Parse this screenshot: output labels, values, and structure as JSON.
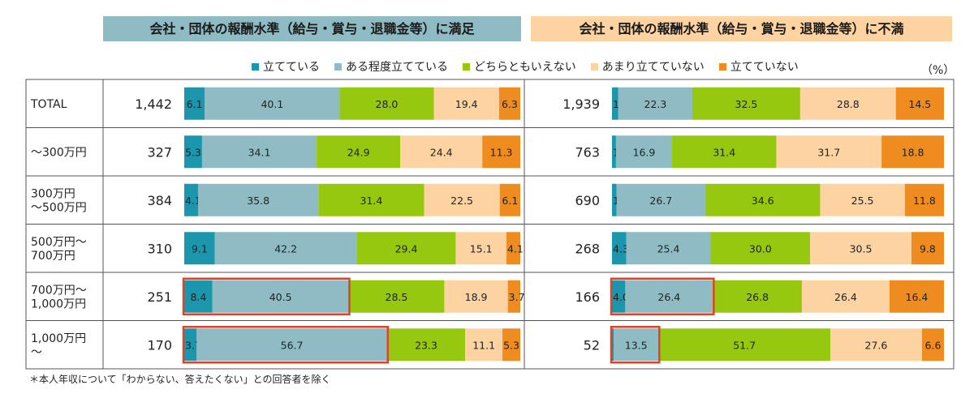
{
  "panels": {
    "left_title": "会社・団体の報酬水準（給与・賞与・退職金等）に満足",
    "right_title": "会社・団体の報酬水準（給与・賞与・退職金等）に不満"
  },
  "unit": "（%）",
  "footnote": "＊本人年収について「わからない、答えたくない」との回答者を除く",
  "legend": [
    {
      "label": "立てている",
      "color": "#1b96ad"
    },
    {
      "label": "ある程度立てている",
      "color": "#8fbcc4"
    },
    {
      "label": "どちらともいえない",
      "color": "#96c80f"
    },
    {
      "label": "あまり立てていない",
      "color": "#fdd3a2"
    },
    {
      "label": "立てていない",
      "color": "#ef8c1f"
    }
  ],
  "chart_data": [
    {
      "type": "bar",
      "orientation": "horizontal",
      "stacked": true,
      "title": "会社・団体の報酬水準（給与・賞与・退職金等）に満足",
      "categories": [
        "TOTAL",
        "～300万円",
        "300万円\n～500万円",
        "500万円～\n700万円",
        "700万円～\n1,000万円",
        "1,000万円\n～"
      ],
      "n": [
        "1,442",
        "327",
        "384",
        "310",
        "251",
        "170"
      ],
      "series": [
        {
          "name": "立てている",
          "values": [
            6.1,
            5.3,
            4.1,
            9.1,
            8.4,
            3.7
          ]
        },
        {
          "name": "ある程度立てている",
          "values": [
            40.1,
            34.1,
            35.8,
            42.2,
            40.5,
            56.7
          ]
        },
        {
          "name": "どちらともいえない",
          "values": [
            28.0,
            24.9,
            31.4,
            29.4,
            28.5,
            23.3
          ]
        },
        {
          "name": "あまり立てていない",
          "values": [
            19.4,
            24.4,
            22.5,
            15.1,
            18.9,
            11.1
          ]
        },
        {
          "name": "立てていない",
          "values": [
            6.3,
            11.3,
            6.1,
            4.1,
            3.7,
            5.3
          ]
        }
      ],
      "highlighted_rows": [
        4,
        5
      ],
      "highlighted_segments": 2,
      "highlight_color": "#d9452b"
    },
    {
      "type": "bar",
      "orientation": "horizontal",
      "stacked": true,
      "title": "会社・団体の報酬水準（給与・賞与・退職金等）に不満",
      "categories": [
        "TOTAL",
        "～300万円",
        "300万円\n～500万円",
        "500万円～\n700万円",
        "700万円～\n1,000万円",
        "1,000万円\n～"
      ],
      "n": [
        "1,939",
        "763",
        "690",
        "268",
        "166",
        "52"
      ],
      "series": [
        {
          "name": "立てている",
          "values": [
            1.9,
            1.2,
            1.4,
            4.3,
            4.0,
            0.5
          ]
        },
        {
          "name": "ある程度立てている",
          "values": [
            22.3,
            16.9,
            26.7,
            25.4,
            26.4,
            13.5
          ]
        },
        {
          "name": "どちらともいえない",
          "values": [
            32.5,
            31.4,
            34.6,
            30.0,
            26.8,
            51.7
          ]
        },
        {
          "name": "あまり立てていない",
          "values": [
            28.8,
            31.7,
            25.5,
            30.5,
            26.4,
            27.6
          ]
        },
        {
          "name": "立てていない",
          "values": [
            14.5,
            18.8,
            11.8,
            9.8,
            16.4,
            6.6
          ]
        }
      ],
      "highlighted_rows": [
        4,
        5
      ],
      "highlighted_segments": 2,
      "highlight_color": "#d9452b"
    }
  ]
}
